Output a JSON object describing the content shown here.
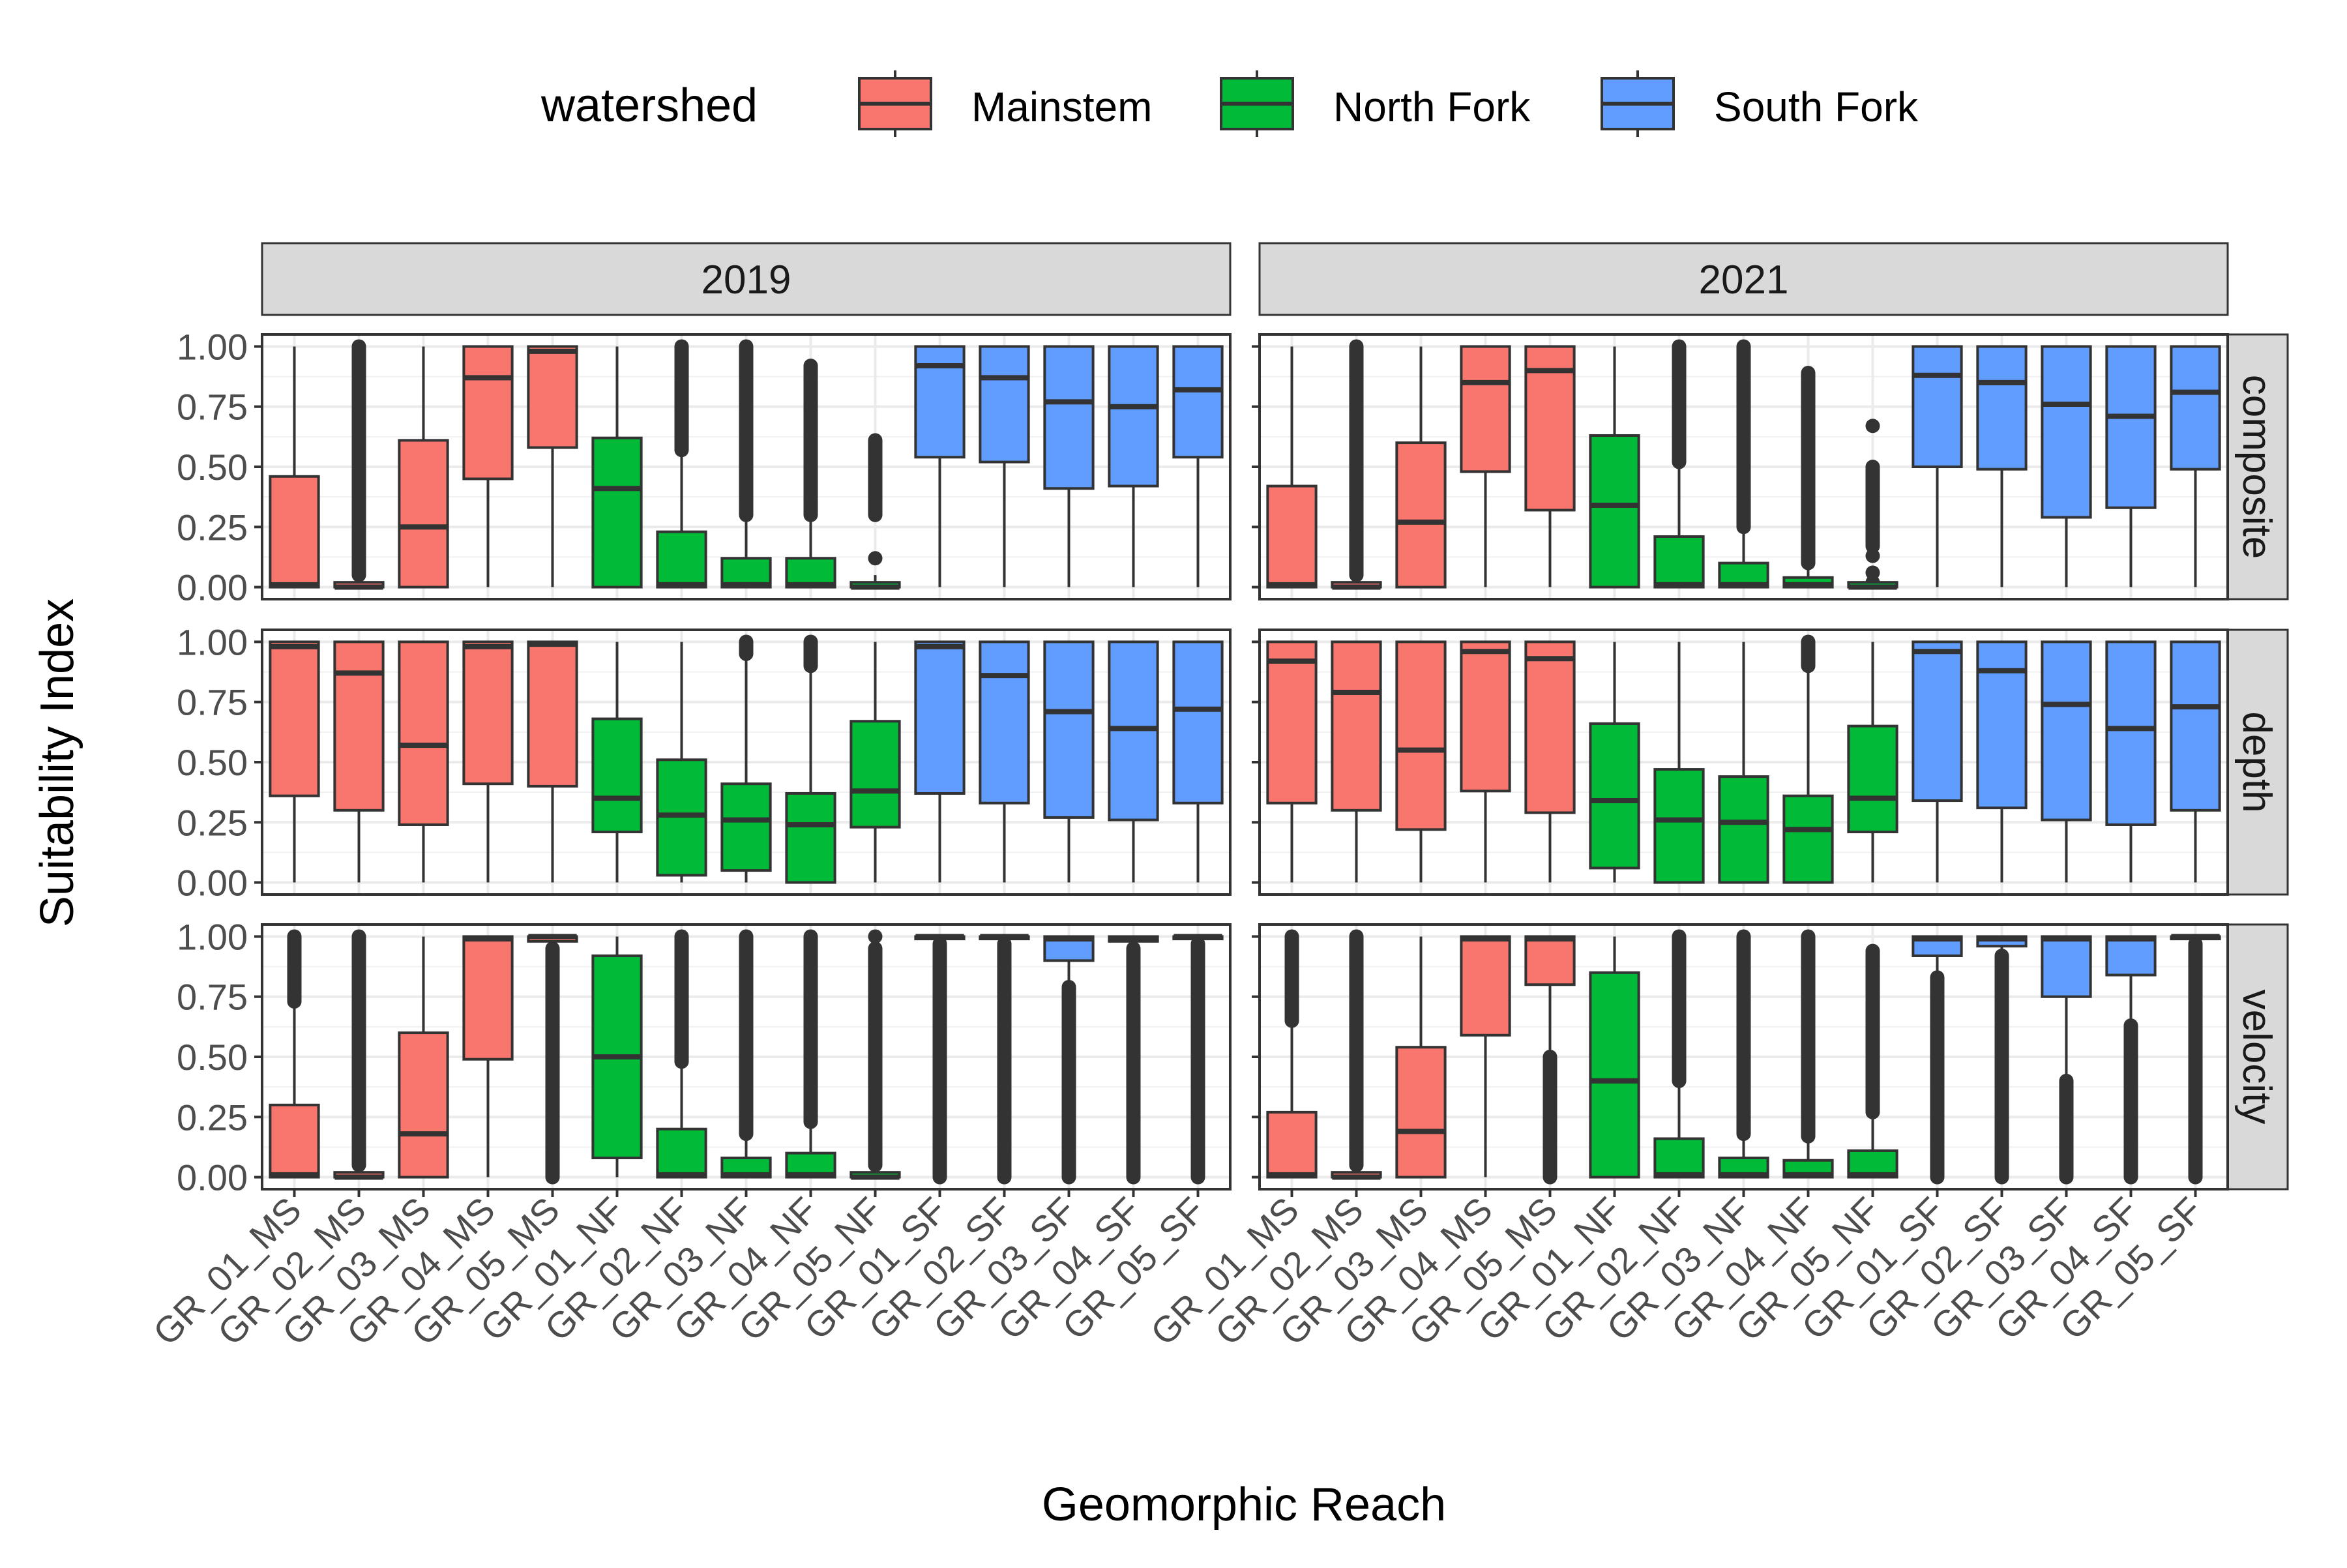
{
  "chart_data": {
    "type": "boxplot",
    "xlabel": "Geomorphic Reach",
    "ylabel": "Suitability Index",
    "legend": {
      "title": "watershed",
      "position": "top",
      "entries": [
        {
          "name": "Mainstem",
          "color": "#F8766D"
        },
        {
          "name": "North Fork",
          "color": "#00BA38"
        },
        {
          "name": "South Fork",
          "color": "#619CFF"
        }
      ]
    },
    "facet_columns": [
      "2019",
      "2021"
    ],
    "facet_rows": [
      "composite",
      "depth",
      "velocity"
    ],
    "categories": [
      "GR_01_MS",
      "GR_02_MS",
      "GR_03_MS",
      "GR_04_MS",
      "GR_05_MS",
      "GR_01_NF",
      "GR_02_NF",
      "GR_03_NF",
      "GR_04_NF",
      "GR_05_NF",
      "GR_01_SF",
      "GR_02_SF",
      "GR_03_SF",
      "GR_04_SF",
      "GR_05_SF"
    ],
    "category_watershed": [
      "Mainstem",
      "Mainstem",
      "Mainstem",
      "Mainstem",
      "Mainstem",
      "North Fork",
      "North Fork",
      "North Fork",
      "North Fork",
      "North Fork",
      "South Fork",
      "South Fork",
      "South Fork",
      "South Fork",
      "South Fork"
    ],
    "ylim": [
      -0.05,
      1.05
    ],
    "yticks": [
      0,
      0.25,
      0.5,
      0.75,
      1.0
    ],
    "ytick_labels": [
      "0.00",
      "0.25",
      "0.50",
      "0.75",
      "1.00"
    ],
    "grid": true,
    "panels": [
      {
        "year": "2019",
        "metric": "composite",
        "boxes": [
          {
            "q1": 0.0,
            "median": 0.01,
            "q3": 0.46,
            "wlo": 0.0,
            "whi": 1.0
          },
          {
            "q1": 0.0,
            "median": 0.0,
            "q3": 0.02,
            "wlo": 0.0,
            "whi": 0.05,
            "out_min": 0.05,
            "out_max": 1.0,
            "out_dense": true
          },
          {
            "q1": 0.0,
            "median": 0.25,
            "q3": 0.61,
            "wlo": 0.0,
            "whi": 1.0
          },
          {
            "q1": 0.45,
            "median": 0.87,
            "q3": 1.0,
            "wlo": 0.0,
            "whi": 1.0
          },
          {
            "q1": 0.58,
            "median": 0.98,
            "q3": 1.0,
            "wlo": 0.0,
            "whi": 1.0
          },
          {
            "q1": 0.0,
            "median": 0.41,
            "q3": 0.62,
            "wlo": 0.0,
            "whi": 1.0
          },
          {
            "q1": 0.0,
            "median": 0.01,
            "q3": 0.23,
            "wlo": 0.0,
            "whi": 0.57,
            "out_min": 0.57,
            "out_max": 1.0,
            "out_dense": true
          },
          {
            "q1": 0.0,
            "median": 0.01,
            "q3": 0.12,
            "wlo": 0.0,
            "whi": 0.3,
            "out_min": 0.3,
            "out_max": 1.0,
            "out_dense": true
          },
          {
            "q1": 0.0,
            "median": 0.01,
            "q3": 0.12,
            "wlo": 0.0,
            "whi": 0.3,
            "out_min": 0.3,
            "out_max": 0.92,
            "out_dense": true
          },
          {
            "q1": 0.0,
            "median": 0.0,
            "q3": 0.02,
            "wlo": 0.0,
            "whi": 0.05,
            "out_min": 0.3,
            "out_max": 0.61,
            "out_dense": true,
            "out_extra": [
              0.12
            ]
          },
          {
            "q1": 0.54,
            "median": 0.92,
            "q3": 1.0,
            "wlo": 0.0,
            "whi": 1.0
          },
          {
            "q1": 0.52,
            "median": 0.87,
            "q3": 1.0,
            "wlo": 0.0,
            "whi": 1.0
          },
          {
            "q1": 0.41,
            "median": 0.77,
            "q3": 1.0,
            "wlo": 0.0,
            "whi": 1.0
          },
          {
            "q1": 0.42,
            "median": 0.75,
            "q3": 1.0,
            "wlo": 0.0,
            "whi": 1.0
          },
          {
            "q1": 0.54,
            "median": 0.82,
            "q3": 1.0,
            "wlo": 0.0,
            "whi": 1.0
          }
        ]
      },
      {
        "year": "2021",
        "metric": "composite",
        "boxes": [
          {
            "q1": 0.0,
            "median": 0.01,
            "q3": 0.42,
            "wlo": 0.0,
            "whi": 1.0
          },
          {
            "q1": 0.0,
            "median": 0.0,
            "q3": 0.02,
            "wlo": 0.0,
            "whi": 0.05,
            "out_min": 0.05,
            "out_max": 1.0,
            "out_dense": true
          },
          {
            "q1": 0.0,
            "median": 0.27,
            "q3": 0.6,
            "wlo": 0.0,
            "whi": 1.0
          },
          {
            "q1": 0.48,
            "median": 0.85,
            "q3": 1.0,
            "wlo": 0.0,
            "whi": 1.0
          },
          {
            "q1": 0.32,
            "median": 0.9,
            "q3": 1.0,
            "wlo": 0.0,
            "whi": 1.0
          },
          {
            "q1": 0.0,
            "median": 0.34,
            "q3": 0.63,
            "wlo": 0.0,
            "whi": 1.0
          },
          {
            "q1": 0.0,
            "median": 0.01,
            "q3": 0.21,
            "wlo": 0.0,
            "whi": 0.52,
            "out_min": 0.52,
            "out_max": 1.0,
            "out_dense": true
          },
          {
            "q1": 0.0,
            "median": 0.01,
            "q3": 0.1,
            "wlo": 0.0,
            "whi": 0.25,
            "out_min": 0.25,
            "out_max": 1.0,
            "out_dense": true
          },
          {
            "q1": 0.0,
            "median": 0.01,
            "q3": 0.04,
            "wlo": 0.0,
            "whi": 0.1,
            "out_min": 0.1,
            "out_max": 0.89,
            "out_dense": true
          },
          {
            "q1": 0.0,
            "median": 0.0,
            "q3": 0.02,
            "wlo": 0.0,
            "whi": 0.05,
            "out_min": 0.17,
            "out_max": 0.5,
            "out_dense": true,
            "out_extra": [
              0.02,
              0.06,
              0.13,
              0.67
            ]
          },
          {
            "q1": 0.5,
            "median": 0.88,
            "q3": 1.0,
            "wlo": 0.0,
            "whi": 1.0
          },
          {
            "q1": 0.49,
            "median": 0.85,
            "q3": 1.0,
            "wlo": 0.0,
            "whi": 1.0
          },
          {
            "q1": 0.29,
            "median": 0.76,
            "q3": 1.0,
            "wlo": 0.0,
            "whi": 1.0
          },
          {
            "q1": 0.33,
            "median": 0.71,
            "q3": 1.0,
            "wlo": 0.0,
            "whi": 1.0
          },
          {
            "q1": 0.49,
            "median": 0.81,
            "q3": 1.0,
            "wlo": 0.0,
            "whi": 1.0
          }
        ]
      },
      {
        "year": "2019",
        "metric": "depth",
        "boxes": [
          {
            "q1": 0.36,
            "median": 0.98,
            "q3": 1.0,
            "wlo": 0.0,
            "whi": 1.0
          },
          {
            "q1": 0.3,
            "median": 0.87,
            "q3": 1.0,
            "wlo": 0.0,
            "whi": 1.0
          },
          {
            "q1": 0.24,
            "median": 0.57,
            "q3": 1.0,
            "wlo": 0.0,
            "whi": 1.0
          },
          {
            "q1": 0.41,
            "median": 0.98,
            "q3": 1.0,
            "wlo": 0.0,
            "whi": 1.0
          },
          {
            "q1": 0.4,
            "median": 0.99,
            "q3": 1.0,
            "wlo": 0.0,
            "whi": 1.0
          },
          {
            "q1": 0.21,
            "median": 0.35,
            "q3": 0.68,
            "wlo": 0.0,
            "whi": 1.0
          },
          {
            "q1": 0.03,
            "median": 0.28,
            "q3": 0.51,
            "wlo": 0.0,
            "whi": 1.0
          },
          {
            "q1": 0.05,
            "median": 0.26,
            "q3": 0.41,
            "wlo": 0.0,
            "whi": 0.95,
            "out_min": 0.95,
            "out_max": 1.0,
            "out_dense": true
          },
          {
            "q1": 0.0,
            "median": 0.24,
            "q3": 0.37,
            "wlo": 0.0,
            "whi": 0.9,
            "out_min": 0.9,
            "out_max": 1.0,
            "out_dense": true
          },
          {
            "q1": 0.23,
            "median": 0.38,
            "q3": 0.67,
            "wlo": 0.0,
            "whi": 1.0
          },
          {
            "q1": 0.37,
            "median": 0.98,
            "q3": 1.0,
            "wlo": 0.0,
            "whi": 1.0
          },
          {
            "q1": 0.33,
            "median": 0.86,
            "q3": 1.0,
            "wlo": 0.0,
            "whi": 1.0
          },
          {
            "q1": 0.27,
            "median": 0.71,
            "q3": 1.0,
            "wlo": 0.0,
            "whi": 1.0
          },
          {
            "q1": 0.26,
            "median": 0.64,
            "q3": 1.0,
            "wlo": 0.0,
            "whi": 1.0
          },
          {
            "q1": 0.33,
            "median": 0.72,
            "q3": 1.0,
            "wlo": 0.0,
            "whi": 1.0
          }
        ]
      },
      {
        "year": "2021",
        "metric": "depth",
        "boxes": [
          {
            "q1": 0.33,
            "median": 0.92,
            "q3": 1.0,
            "wlo": 0.0,
            "whi": 1.0
          },
          {
            "q1": 0.3,
            "median": 0.79,
            "q3": 1.0,
            "wlo": 0.0,
            "whi": 1.0
          },
          {
            "q1": 0.22,
            "median": 0.55,
            "q3": 1.0,
            "wlo": 0.0,
            "whi": 1.0
          },
          {
            "q1": 0.38,
            "median": 0.96,
            "q3": 1.0,
            "wlo": 0.0,
            "whi": 1.0
          },
          {
            "q1": 0.29,
            "median": 0.93,
            "q3": 1.0,
            "wlo": 0.0,
            "whi": 1.0
          },
          {
            "q1": 0.06,
            "median": 0.34,
            "q3": 0.66,
            "wlo": 0.0,
            "whi": 1.0
          },
          {
            "q1": 0.0,
            "median": 0.26,
            "q3": 0.47,
            "wlo": 0.0,
            "whi": 1.0
          },
          {
            "q1": 0.0,
            "median": 0.25,
            "q3": 0.44,
            "wlo": 0.0,
            "whi": 1.0
          },
          {
            "q1": 0.0,
            "median": 0.22,
            "q3": 0.36,
            "wlo": 0.0,
            "whi": 0.9,
            "out_min": 0.9,
            "out_max": 1.0,
            "out_dense": true
          },
          {
            "q1": 0.21,
            "median": 0.35,
            "q3": 0.65,
            "wlo": 0.0,
            "whi": 1.0
          },
          {
            "q1": 0.34,
            "median": 0.96,
            "q3": 1.0,
            "wlo": 0.0,
            "whi": 1.0
          },
          {
            "q1": 0.31,
            "median": 0.88,
            "q3": 1.0,
            "wlo": 0.0,
            "whi": 1.0
          },
          {
            "q1": 0.26,
            "median": 0.74,
            "q3": 1.0,
            "wlo": 0.0,
            "whi": 1.0
          },
          {
            "q1": 0.24,
            "median": 0.64,
            "q3": 1.0,
            "wlo": 0.0,
            "whi": 1.0
          },
          {
            "q1": 0.3,
            "median": 0.73,
            "q3": 1.0,
            "wlo": 0.0,
            "whi": 1.0
          }
        ]
      },
      {
        "year": "2019",
        "metric": "velocity",
        "boxes": [
          {
            "q1": 0.0,
            "median": 0.01,
            "q3": 0.3,
            "wlo": 0.0,
            "whi": 0.73,
            "out_min": 0.73,
            "out_max": 1.0,
            "out_dense": true
          },
          {
            "q1": 0.0,
            "median": 0.0,
            "q3": 0.02,
            "wlo": 0.0,
            "whi": 0.05,
            "out_min": 0.05,
            "out_max": 1.0,
            "out_dense": true
          },
          {
            "q1": 0.0,
            "median": 0.18,
            "q3": 0.6,
            "wlo": 0.0,
            "whi": 1.0
          },
          {
            "q1": 0.49,
            "median": 0.99,
            "q3": 1.0,
            "wlo": 0.0,
            "whi": 1.0
          },
          {
            "q1": 0.98,
            "median": 1.0,
            "q3": 1.0,
            "wlo": 0.95,
            "whi": 1.0,
            "out_min": 0.0,
            "out_max": 0.95,
            "out_dense": true
          },
          {
            "q1": 0.08,
            "median": 0.5,
            "q3": 0.92,
            "wlo": 0.0,
            "whi": 1.0
          },
          {
            "q1": 0.0,
            "median": 0.01,
            "q3": 0.2,
            "wlo": 0.0,
            "whi": 0.48,
            "out_min": 0.48,
            "out_max": 1.0,
            "out_dense": true
          },
          {
            "q1": 0.0,
            "median": 0.01,
            "q3": 0.08,
            "wlo": 0.0,
            "whi": 0.18,
            "out_min": 0.18,
            "out_max": 1.0,
            "out_dense": true
          },
          {
            "q1": 0.0,
            "median": 0.01,
            "q3": 0.1,
            "wlo": 0.0,
            "whi": 0.23,
            "out_min": 0.23,
            "out_max": 1.0,
            "out_dense": true
          },
          {
            "q1": 0.0,
            "median": 0.0,
            "q3": 0.02,
            "wlo": 0.0,
            "whi": 0.05,
            "out_min": 0.05,
            "out_max": 0.95,
            "out_dense": true,
            "out_extra": [
              1.0
            ]
          },
          {
            "q1": 0.99,
            "median": 1.0,
            "q3": 1.0,
            "wlo": 0.97,
            "whi": 1.0,
            "out_min": 0.0,
            "out_max": 0.97,
            "out_dense": true
          },
          {
            "q1": 0.99,
            "median": 1.0,
            "q3": 1.0,
            "wlo": 0.97,
            "whi": 1.0,
            "out_min": 0.0,
            "out_max": 0.97,
            "out_dense": true
          },
          {
            "q1": 0.9,
            "median": 0.99,
            "q3": 1.0,
            "wlo": 0.8,
            "whi": 1.0,
            "out_min": 0.0,
            "out_max": 0.79,
            "out_dense": true
          },
          {
            "q1": 0.98,
            "median": 0.99,
            "q3": 1.0,
            "wlo": 0.95,
            "whi": 1.0,
            "out_min": 0.0,
            "out_max": 0.95,
            "out_dense": true
          },
          {
            "q1": 0.99,
            "median": 1.0,
            "q3": 1.0,
            "wlo": 0.97,
            "whi": 1.0,
            "out_min": 0.0,
            "out_max": 0.97,
            "out_dense": true
          }
        ]
      },
      {
        "year": "2021",
        "metric": "velocity",
        "boxes": [
          {
            "q1": 0.0,
            "median": 0.01,
            "q3": 0.27,
            "wlo": 0.0,
            "whi": 0.65,
            "out_min": 0.65,
            "out_max": 1.0,
            "out_dense": true
          },
          {
            "q1": 0.0,
            "median": 0.0,
            "q3": 0.02,
            "wlo": 0.0,
            "whi": 0.05,
            "out_min": 0.05,
            "out_max": 1.0,
            "out_dense": true
          },
          {
            "q1": 0.0,
            "median": 0.19,
            "q3": 0.54,
            "wlo": 0.0,
            "whi": 1.0
          },
          {
            "q1": 0.59,
            "median": 0.99,
            "q3": 1.0,
            "wlo": 0.0,
            "whi": 1.0
          },
          {
            "q1": 0.8,
            "median": 0.99,
            "q3": 1.0,
            "wlo": 0.5,
            "whi": 1.0,
            "out_min": 0.0,
            "out_max": 0.5,
            "out_dense": true
          },
          {
            "q1": 0.0,
            "median": 0.4,
            "q3": 0.85,
            "wlo": 0.0,
            "whi": 1.0
          },
          {
            "q1": 0.0,
            "median": 0.01,
            "q3": 0.16,
            "wlo": 0.0,
            "whi": 0.4,
            "out_min": 0.4,
            "out_max": 1.0,
            "out_dense": true
          },
          {
            "q1": 0.0,
            "median": 0.01,
            "q3": 0.08,
            "wlo": 0.0,
            "whi": 0.18,
            "out_min": 0.18,
            "out_max": 1.0,
            "out_dense": true
          },
          {
            "q1": 0.0,
            "median": 0.01,
            "q3": 0.07,
            "wlo": 0.0,
            "whi": 0.17,
            "out_min": 0.17,
            "out_max": 1.0,
            "out_dense": true
          },
          {
            "q1": 0.0,
            "median": 0.01,
            "q3": 0.11,
            "wlo": 0.0,
            "whi": 0.27,
            "out_min": 0.27,
            "out_max": 0.94,
            "out_dense": true
          },
          {
            "q1": 0.92,
            "median": 0.99,
            "q3": 1.0,
            "wlo": 0.83,
            "whi": 1.0,
            "out_min": 0.0,
            "out_max": 0.83,
            "out_dense": true
          },
          {
            "q1": 0.96,
            "median": 0.99,
            "q3": 1.0,
            "wlo": 0.92,
            "whi": 1.0,
            "out_min": 0.0,
            "out_max": 0.92,
            "out_dense": true
          },
          {
            "q1": 0.75,
            "median": 0.99,
            "q3": 1.0,
            "wlo": 0.4,
            "whi": 1.0,
            "out_min": 0.0,
            "out_max": 0.4,
            "out_dense": true
          },
          {
            "q1": 0.84,
            "median": 0.99,
            "q3": 1.0,
            "wlo": 0.63,
            "whi": 1.0,
            "out_min": 0.0,
            "out_max": 0.63,
            "out_dense": true
          },
          {
            "q1": 0.99,
            "median": 1.0,
            "q3": 1.0,
            "wlo": 0.97,
            "whi": 1.0,
            "out_min": 0.0,
            "out_max": 0.97,
            "out_dense": true
          }
        ]
      }
    ]
  }
}
